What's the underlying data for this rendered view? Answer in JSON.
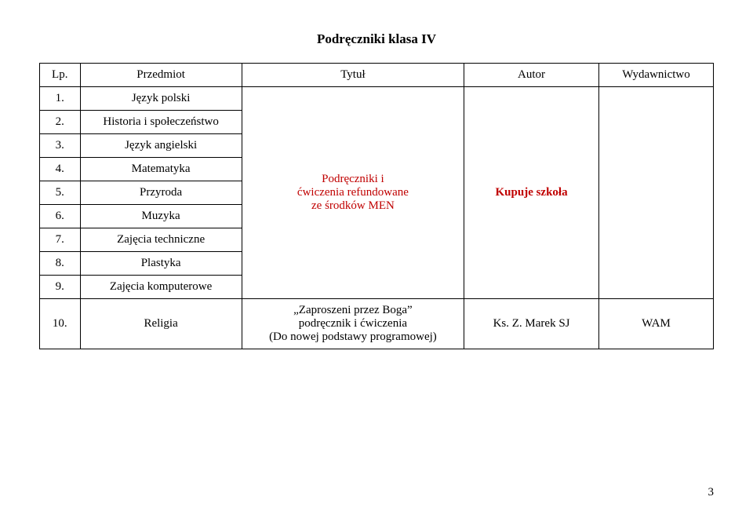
{
  "title": "Podręczniki klasa IV",
  "headers": {
    "lp": "Lp.",
    "przedmiot": "Przedmiot",
    "tytul": "Tytuł",
    "autor": "Autor",
    "wyd": "Wydawnictwo"
  },
  "rows": {
    "r1": {
      "lp": "1.",
      "przedmiot": "Język polski"
    },
    "r2": {
      "lp": "2.",
      "przedmiot": "Historia i społeczeństwo"
    },
    "r3": {
      "lp": "3.",
      "przedmiot": "Język angielski"
    },
    "r4": {
      "lp": "4.",
      "przedmiot": "Matematyka"
    },
    "r5": {
      "lp": "5.",
      "przedmiot": "Przyroda"
    },
    "r6": {
      "lp": "6.",
      "przedmiot": "Muzyka"
    },
    "r7": {
      "lp": "7.",
      "przedmiot": "Zajęcia techniczne"
    },
    "r8": {
      "lp": "8.",
      "przedmiot": "Plastyka"
    },
    "r9": {
      "lp": "9.",
      "przedmiot": "Zajęcia komputerowe"
    },
    "r10": {
      "lp": "10.",
      "przedmiot": "Religia",
      "tytul_line1": "„Zaproszeni przez Boga”",
      "tytul_line2": "podręcznik i ćwiczenia",
      "tytul_line3": "(Do nowej podstawy programowej)",
      "autor": "Ks. Z. Marek SJ",
      "wyd": "WAM"
    }
  },
  "merged": {
    "tytul_line1": "Podręczniki i",
    "tytul_line2": "ćwiczenia refundowane",
    "tytul_line3": "ze środków MEN",
    "autor": "Kupuje szkoła"
  },
  "pageNumber": "3",
  "colors": {
    "text": "#000000",
    "red": "#c00000",
    "background": "#ffffff",
    "border": "#000000"
  },
  "fonts": {
    "family": "Times New Roman",
    "title_size_pt": 13,
    "body_size_pt": 11
  }
}
